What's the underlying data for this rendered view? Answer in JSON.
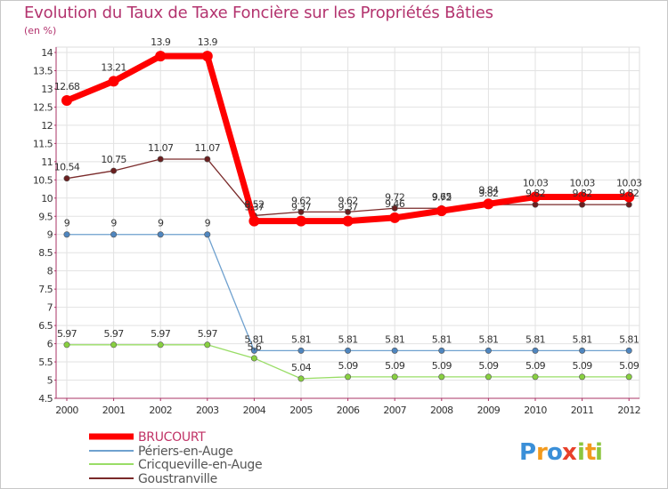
{
  "chart_data": {
    "type": "line",
    "title": "Evolution du Taux de Taxe Foncière sur les Propriétés Bâties",
    "ylabel": "(en %)",
    "xlabel": "",
    "ylim": [
      4.5,
      14
    ],
    "yticks": [
      "4.5",
      "5",
      "5.5",
      "6",
      "6.5",
      "7",
      "7.5",
      "8",
      "8.5",
      "9",
      "9.5",
      "10",
      "10.5",
      "11",
      "11.5",
      "12",
      "12.5",
      "13",
      "13.5",
      "14"
    ],
    "x": [
      "2000",
      "2001",
      "2002",
      "2003",
      "2004",
      "2005",
      "2006",
      "2007",
      "2008",
      "2009",
      "2010",
      "2011",
      "2012"
    ],
    "grid": true,
    "legend_position": "bottom-left",
    "series": [
      {
        "name": "BRUCOURT",
        "color": "#ff0000",
        "values": [
          12.68,
          13.21,
          13.9,
          13.9,
          9.37,
          9.37,
          9.37,
          9.46,
          9.65,
          9.84,
          10.03,
          10.03,
          10.03
        ],
        "labels": [
          "12.68",
          "13.21",
          "13.9",
          "13.9",
          "9.37",
          "9.37",
          "9.37",
          "9.46",
          "9.65",
          "9.84",
          "10.03",
          "10.03",
          "10.03"
        ]
      },
      {
        "name": "Périers-en-Auge",
        "color": "#6fa1cf",
        "values": [
          9,
          9,
          9,
          9,
          5.81,
          5.81,
          5.81,
          5.81,
          5.81,
          5.81,
          5.81,
          5.81,
          5.81
        ],
        "labels": [
          "9",
          "9",
          "9",
          "9",
          "5.81",
          "5.81",
          "5.81",
          "5.81",
          "5.81",
          "5.81",
          "5.81",
          "5.81",
          "5.81"
        ]
      },
      {
        "name": "Cricqueville-en-Auge",
        "color": "#99dd66",
        "values": [
          5.97,
          5.97,
          5.97,
          5.97,
          5.6,
          5.04,
          5.09,
          5.09,
          5.09,
          5.09,
          5.09,
          5.09,
          5.09
        ],
        "labels": [
          "5.97",
          "5.97",
          "5.97",
          "5.97",
          "5.6",
          "5.04",
          "5.09",
          "5.09",
          "5.09",
          "5.09",
          "5.09",
          "5.09",
          "5.09"
        ]
      },
      {
        "name": "Goustranville",
        "color": "#7a2a2a",
        "values": [
          10.54,
          10.75,
          11.07,
          11.07,
          9.52,
          9.62,
          9.62,
          9.72,
          9.72,
          9.82,
          9.82,
          9.82,
          9.82
        ],
        "labels": [
          "10.54",
          "10.75",
          "11.07",
          "11.07",
          "9.52",
          "9.62",
          "9.62",
          "9.72",
          "9.72",
          "9.82",
          "9.82",
          "9.82",
          "9.82"
        ]
      }
    ]
  },
  "logo": {
    "letters": [
      "P",
      "r",
      "o",
      "x",
      "i",
      "t",
      "i"
    ],
    "colors": [
      "#3a8fd8",
      "#f29a1d",
      "#3a8fd8",
      "#e8402a",
      "#8cc63f",
      "#f29a1d",
      "#8cc63f"
    ]
  }
}
